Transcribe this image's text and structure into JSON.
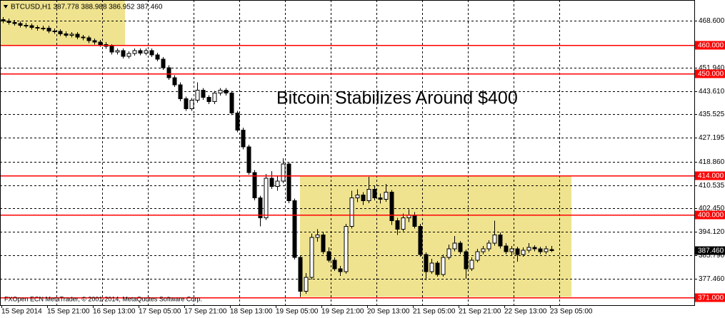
{
  "chart_data": {
    "type": "candlestick",
    "header": "BTCUSD,H1  387.778 388.988 386.952 387.460",
    "annotation": "Bitcoin Stabilizes Around $400",
    "footer": "FXOpen ECN MetaTrader, © 2001-2014, MetaQuotes Software Corp.",
    "x_labels": [
      "15 Sep 2014",
      "15 Sep 21:00",
      "16 Sep 13:00",
      "17 Sep 05:00",
      "17 Sep 21:00",
      "18 Sep 13:00",
      "19 Sep 05:00",
      "19 Sep 21:00",
      "20 Sep 13:00",
      "21 Sep 05:00",
      "21 Sep 21:00",
      "22 Sep 13:00",
      "23 Sep 05:00"
    ],
    "ylim": [
      368.14,
      475.9
    ],
    "yticks": [
      {
        "value": 468.6,
        "label": "468.600"
      },
      {
        "value": 451.94,
        "label": "451.940"
      },
      {
        "value": 443.61,
        "label": "443.610"
      },
      {
        "value": 435.525,
        "label": "435.525"
      },
      {
        "value": 427.195,
        "label": "427.195"
      },
      {
        "value": 418.86,
        "label": "418.860"
      },
      {
        "value": 410.535,
        "label": "410.535"
      },
      {
        "value": 402.45,
        "label": "402.450"
      },
      {
        "value": 394.12,
        "label": "394.120"
      },
      {
        "value": 385.79,
        "label": "385.790"
      },
      {
        "value": 377.46,
        "label": "377.460"
      }
    ],
    "levels": [
      {
        "value": 460,
        "label": "460.000"
      },
      {
        "value": 450,
        "label": "450.000"
      },
      {
        "value": 414,
        "label": "414.000"
      },
      {
        "value": 400,
        "label": "400.000"
      },
      {
        "value": 371,
        "label": "371.000"
      }
    ],
    "bid": {
      "value": 387.46,
      "label": "387.460"
    },
    "grid": true,
    "level_color": "#ff0000",
    "zone_color": "#efe38f",
    "up_color": "#ffffff",
    "down_color": "#000000",
    "candles": [
      [
        469.0,
        469.8,
        467.7,
        468.5
      ],
      [
        468.5,
        469.3,
        467.2,
        468.0
      ],
      [
        468.0,
        468.8,
        466.8,
        467.6
      ],
      [
        467.6,
        468.4,
        466.2,
        467.0
      ],
      [
        467.0,
        467.8,
        466.0,
        466.8
      ],
      [
        466.8,
        467.6,
        465.4,
        466.2
      ],
      [
        466.2,
        467.0,
        465.1,
        465.9
      ],
      [
        465.9,
        466.8,
        465.1,
        466.0
      ],
      [
        466.0,
        466.8,
        464.2,
        465.0
      ],
      [
        465.0,
        465.8,
        464.0,
        464.8
      ],
      [
        464.8,
        465.6,
        463.2,
        464.0
      ],
      [
        464.0,
        464.8,
        462.7,
        463.5
      ],
      [
        463.5,
        464.6,
        462.7,
        463.8
      ],
      [
        463.8,
        464.6,
        462.0,
        462.8
      ],
      [
        462.8,
        463.6,
        461.7,
        462.5
      ],
      [
        462.5,
        463.3,
        460.7,
        461.5
      ],
      [
        461.5,
        462.3,
        460.2,
        461.0
      ],
      [
        461.0,
        461.8,
        459.4,
        460.2
      ],
      [
        460.2,
        461.0,
        458.7,
        459.5
      ],
      [
        459.5,
        460.3,
        456.7,
        457.5
      ],
      [
        457.5,
        458.8,
        456.7,
        458.0
      ],
      [
        458.0,
        458.8,
        455.2,
        456.0
      ],
      [
        456.0,
        457.8,
        455.2,
        457.0
      ],
      [
        457.0,
        458.8,
        456.2,
        458.0
      ],
      [
        458.0,
        458.8,
        456.4,
        457.2
      ],
      [
        457.2,
        458.8,
        456.4,
        458.0
      ],
      [
        458.0,
        458.8,
        455.7,
        456.5
      ],
      [
        456.5,
        457.3,
        454.2,
        455.0
      ],
      [
        455.0,
        455.8,
        451.2,
        452.0
      ],
      [
        452.0,
        452.8,
        447.7,
        448.5
      ],
      [
        448.5,
        449.3,
        445.2,
        446.0
      ],
      [
        446.0,
        446.8,
        440.2,
        441.0
      ],
      [
        441.0,
        441.8,
        436.7,
        437.5
      ],
      [
        437.5,
        441.3,
        436.7,
        440.5
      ],
      [
        440.5,
        446.8,
        439.7,
        444.0
      ],
      [
        444.0,
        444.8,
        440.7,
        441.5
      ],
      [
        441.5,
        442.3,
        439.2,
        440.0
      ],
      [
        440.0,
        443.8,
        439.2,
        443.0
      ],
      [
        443.0,
        444.8,
        442.2,
        444.0
      ],
      [
        444.0,
        444.8,
        442.2,
        443.0
      ],
      [
        443.0,
        443.8,
        435.2,
        436.0
      ],
      [
        436.0,
        436.8,
        429.2,
        430.0
      ],
      [
        430.0,
        430.8,
        423.2,
        424.0
      ],
      [
        424.0,
        424.8,
        414.2,
        415.0
      ],
      [
        415.0,
        415.8,
        405.2,
        406.0
      ],
      [
        406.0,
        406.8,
        396.0,
        399.0
      ],
      [
        399.0,
        414.5,
        398.2,
        413.0
      ],
      [
        413.0,
        415.5,
        409.2,
        410.0
      ],
      [
        410.0,
        413.8,
        408.5,
        412.0
      ],
      [
        412.0,
        420.0,
        411.2,
        418.0
      ],
      [
        418.0,
        418.8,
        404.2,
        405.0
      ],
      [
        405.0,
        405.8,
        384.2,
        385.0
      ],
      [
        385.0,
        385.8,
        371.0,
        373.0
      ],
      [
        373.0,
        379.5,
        372.2,
        378.0
      ],
      [
        378.0,
        393.5,
        377.2,
        392.0
      ],
      [
        392.0,
        395.0,
        390.5,
        393.0
      ],
      [
        393.0,
        393.8,
        386.2,
        387.0
      ],
      [
        387.0,
        388.5,
        383.2,
        384.0
      ],
      [
        384.0,
        385.0,
        380.2,
        381.0
      ],
      [
        381.0,
        382.0,
        378.5,
        380.0
      ],
      [
        380.0,
        396.8,
        379.2,
        396.0
      ],
      [
        396.0,
        408.5,
        395.2,
        406.0
      ],
      [
        406.0,
        409.0,
        404.5,
        407.0
      ],
      [
        407.0,
        408.0,
        403.5,
        405.0
      ],
      [
        405.0,
        413.5,
        404.2,
        409.0
      ],
      [
        409.0,
        410.5,
        405.2,
        406.0
      ],
      [
        406.0,
        407.5,
        404.0,
        405.5
      ],
      [
        405.5,
        411.0,
        404.7,
        408.0
      ],
      [
        408.0,
        408.8,
        396.5,
        398.0
      ],
      [
        398.0,
        399.0,
        393.0,
        395.0
      ],
      [
        395.0,
        400.5,
        394.2,
        399.0
      ],
      [
        399.0,
        402.0,
        397.5,
        400.0
      ],
      [
        400.0,
        401.0,
        395.2,
        396.0
      ],
      [
        396.0,
        396.8,
        385.2,
        386.0
      ],
      [
        386.0,
        386.8,
        377.0,
        380.0
      ],
      [
        380.0,
        384.5,
        379.2,
        383.0
      ],
      [
        383.0,
        383.8,
        378.2,
        379.0
      ],
      [
        379.0,
        386.0,
        378.2,
        385.0
      ],
      [
        385.0,
        389.5,
        384.2,
        388.0
      ],
      [
        388.0,
        392.5,
        387.2,
        390.0
      ],
      [
        390.0,
        390.8,
        386.2,
        387.0
      ],
      [
        387.0,
        387.8,
        377.5,
        381.0
      ],
      [
        381.0,
        385.0,
        380.2,
        384.0
      ],
      [
        384.0,
        388.0,
        383.2,
        387.0
      ],
      [
        387.0,
        389.0,
        386.2,
        388.0
      ],
      [
        388.0,
        391.0,
        387.2,
        390.0
      ],
      [
        390.0,
        398.0,
        389.2,
        393.0
      ],
      [
        393.0,
        393.8,
        388.2,
        389.0
      ],
      [
        389.0,
        390.0,
        386.2,
        387.0
      ],
      [
        387.0,
        389.0,
        385.5,
        388.0
      ],
      [
        388.0,
        388.8,
        383.5,
        386.0
      ],
      [
        386.0,
        388.5,
        385.2,
        387.5
      ],
      [
        387.5,
        390.0,
        386.7,
        388.5
      ],
      [
        388.5,
        389.3,
        387.2,
        388.0
      ],
      [
        388.0,
        388.8,
        386.2,
        387.0
      ],
      [
        387.0,
        389.0,
        386.2,
        388.0
      ],
      [
        387.778,
        388.988,
        386.952,
        387.46
      ]
    ]
  }
}
